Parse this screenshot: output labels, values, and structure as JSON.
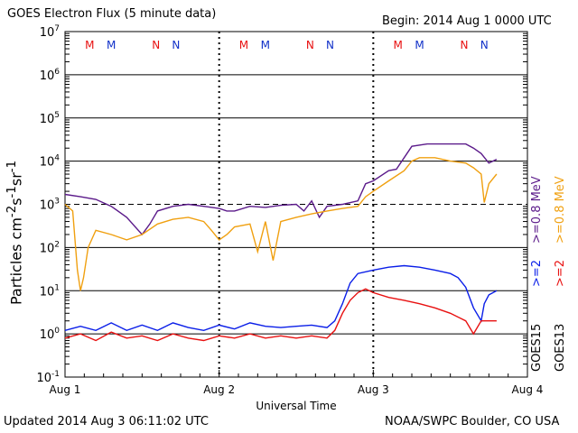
{
  "header": {
    "title": "GOES Electron Flux (5 minute data)",
    "begin": "Begin: 2014 Aug 1 0000 UTC"
  },
  "footer": {
    "updated": "Updated 2014 Aug  3 06:11:02 UTC",
    "credit": "NOAA/SWPC Boulder, CO USA"
  },
  "colors": {
    "goes15_08": "#5b1a8a",
    "goes13_08": "#f0a010",
    "goes15_2": "#0a1ee8",
    "goes13_2": "#e81010",
    "m_marker": "#e81010",
    "n_marker": "#1030c8"
  },
  "chart_data": {
    "type": "line",
    "xlabel": "Universal Time",
    "ylabel": "Particles cm-2s-1sr-1",
    "xticks": [
      "Aug 1",
      "Aug 2",
      "Aug 3",
      "Aug 4"
    ],
    "xlim_days": [
      0,
      3
    ],
    "ylim": [
      0.1,
      10000000
    ],
    "yscale": "log",
    "ytick_exponents": [
      -1,
      0,
      1,
      2,
      3,
      4,
      5,
      6,
      7
    ],
    "threshold_line": 1000,
    "grid": true,
    "markers": [
      {
        "label": "M",
        "color": "red",
        "day": 0.16
      },
      {
        "label": "M",
        "color": "blue",
        "day": 0.3
      },
      {
        "label": "N",
        "color": "red",
        "day": 0.59
      },
      {
        "label": "N",
        "color": "blue",
        "day": 0.72
      },
      {
        "label": "M",
        "color": "red",
        "day": 1.16
      },
      {
        "label": "M",
        "color": "blue",
        "day": 1.3
      },
      {
        "label": "N",
        "color": "red",
        "day": 1.59
      },
      {
        "label": "N",
        "color": "blue",
        "day": 1.72
      },
      {
        "label": "M",
        "color": "red",
        "day": 2.16
      },
      {
        "label": "M",
        "color": "blue",
        "day": 2.3
      },
      {
        "label": "N",
        "color": "red",
        "day": 2.59
      },
      {
        "label": "N",
        "color": "blue",
        "day": 2.72
      }
    ],
    "legend": {
      "goes15": "GOES15",
      "goes13": "GOES13",
      "s15_08": ">=0.8  MeV",
      "s13_08": ">=0.8  MeV",
      "s15_2": ">=2",
      "s13_2": ">=2"
    },
    "series": [
      {
        "key": "g15_08",
        "name": ">=0.8 MeV GOES15",
        "color": "#5b1a8a",
        "points": [
          [
            0,
            1700
          ],
          [
            0.1,
            1500
          ],
          [
            0.2,
            1300
          ],
          [
            0.3,
            900
          ],
          [
            0.4,
            500
          ],
          [
            0.5,
            200
          ],
          [
            0.55,
            350
          ],
          [
            0.6,
            700
          ],
          [
            0.7,
            900
          ],
          [
            0.8,
            1000
          ],
          [
            0.9,
            900
          ],
          [
            1.0,
            800
          ],
          [
            1.05,
            700
          ],
          [
            1.1,
            700
          ],
          [
            1.2,
            900
          ],
          [
            1.3,
            850
          ],
          [
            1.4,
            950
          ],
          [
            1.5,
            1000
          ],
          [
            1.55,
            700
          ],
          [
            1.6,
            1200
          ],
          [
            1.65,
            500
          ],
          [
            1.7,
            900
          ],
          [
            1.8,
            1000
          ],
          [
            1.9,
            1200
          ],
          [
            1.95,
            3000
          ],
          [
            2.0,
            3500
          ],
          [
            2.1,
            6000
          ],
          [
            2.15,
            6500
          ],
          [
            2.2,
            12000
          ],
          [
            2.25,
            22000
          ],
          [
            2.35,
            25000
          ],
          [
            2.5,
            25000
          ],
          [
            2.6,
            25000
          ],
          [
            2.65,
            20000
          ],
          [
            2.7,
            15000
          ],
          [
            2.75,
            9000
          ],
          [
            2.8,
            11000
          ]
        ]
      },
      {
        "key": "g13_08",
        "name": ">=0.8 MeV GOES13",
        "color": "#f0a010",
        "points": [
          [
            0,
            1000
          ],
          [
            0.05,
            700
          ],
          [
            0.08,
            30
          ],
          [
            0.1,
            10
          ],
          [
            0.12,
            20
          ],
          [
            0.15,
            100
          ],
          [
            0.2,
            250
          ],
          [
            0.3,
            200
          ],
          [
            0.4,
            150
          ],
          [
            0.5,
            200
          ],
          [
            0.6,
            350
          ],
          [
            0.7,
            450
          ],
          [
            0.8,
            500
          ],
          [
            0.9,
            400
          ],
          [
            0.95,
            250
          ],
          [
            1.0,
            150
          ],
          [
            1.05,
            200
          ],
          [
            1.1,
            300
          ],
          [
            1.2,
            350
          ],
          [
            1.25,
            80
          ],
          [
            1.3,
            400
          ],
          [
            1.35,
            50
          ],
          [
            1.4,
            400
          ],
          [
            1.5,
            500
          ],
          [
            1.6,
            600
          ],
          [
            1.7,
            700
          ],
          [
            1.8,
            800
          ],
          [
            1.9,
            900
          ],
          [
            1.95,
            1500
          ],
          [
            2.0,
            2000
          ],
          [
            2.1,
            3500
          ],
          [
            2.2,
            6000
          ],
          [
            2.25,
            10000
          ],
          [
            2.3,
            12000
          ],
          [
            2.4,
            12000
          ],
          [
            2.5,
            10000
          ],
          [
            2.6,
            9000
          ],
          [
            2.65,
            7000
          ],
          [
            2.7,
            5000
          ],
          [
            2.72,
            1100
          ],
          [
            2.75,
            3000
          ],
          [
            2.8,
            5000
          ]
        ]
      },
      {
        "key": "g15_2",
        "name": ">=2 MeV GOES15",
        "color": "#0a1ee8",
        "points": [
          [
            0,
            1.2
          ],
          [
            0.1,
            1.5
          ],
          [
            0.2,
            1.2
          ],
          [
            0.3,
            1.8
          ],
          [
            0.4,
            1.2
          ],
          [
            0.5,
            1.6
          ],
          [
            0.6,
            1.2
          ],
          [
            0.7,
            1.8
          ],
          [
            0.8,
            1.4
          ],
          [
            0.9,
            1.2
          ],
          [
            1.0,
            1.6
          ],
          [
            1.1,
            1.3
          ],
          [
            1.2,
            1.8
          ],
          [
            1.3,
            1.5
          ],
          [
            1.4,
            1.4
          ],
          [
            1.5,
            1.5
          ],
          [
            1.6,
            1.6
          ],
          [
            1.7,
            1.4
          ],
          [
            1.75,
            2
          ],
          [
            1.8,
            5
          ],
          [
            1.85,
            15
          ],
          [
            1.9,
            25
          ],
          [
            2.0,
            30
          ],
          [
            2.1,
            35
          ],
          [
            2.2,
            38
          ],
          [
            2.3,
            35
          ],
          [
            2.4,
            30
          ],
          [
            2.5,
            25
          ],
          [
            2.55,
            20
          ],
          [
            2.6,
            12
          ],
          [
            2.65,
            4
          ],
          [
            2.7,
            2
          ],
          [
            2.72,
            5
          ],
          [
            2.75,
            8
          ],
          [
            2.8,
            10
          ]
        ]
      },
      {
        "key": "g13_2",
        "name": ">=2 MeV GOES13",
        "color": "#e81010",
        "points": [
          [
            0,
            0.8
          ],
          [
            0.1,
            1.0
          ],
          [
            0.2,
            0.7
          ],
          [
            0.3,
            1.1
          ],
          [
            0.4,
            0.8
          ],
          [
            0.5,
            0.9
          ],
          [
            0.6,
            0.7
          ],
          [
            0.7,
            1.0
          ],
          [
            0.8,
            0.8
          ],
          [
            0.9,
            0.7
          ],
          [
            1.0,
            0.9
          ],
          [
            1.1,
            0.8
          ],
          [
            1.2,
            1.0
          ],
          [
            1.3,
            0.8
          ],
          [
            1.4,
            0.9
          ],
          [
            1.5,
            0.8
          ],
          [
            1.6,
            0.9
          ],
          [
            1.7,
            0.8
          ],
          [
            1.75,
            1.2
          ],
          [
            1.8,
            3
          ],
          [
            1.85,
            6
          ],
          [
            1.9,
            9
          ],
          [
            1.95,
            11
          ],
          [
            2.0,
            9
          ],
          [
            2.1,
            7
          ],
          [
            2.2,
            6
          ],
          [
            2.3,
            5
          ],
          [
            2.4,
            4
          ],
          [
            2.5,
            3
          ],
          [
            2.6,
            2
          ],
          [
            2.65,
            1
          ],
          [
            2.7,
            2
          ],
          [
            2.8,
            2
          ]
        ]
      }
    ]
  }
}
